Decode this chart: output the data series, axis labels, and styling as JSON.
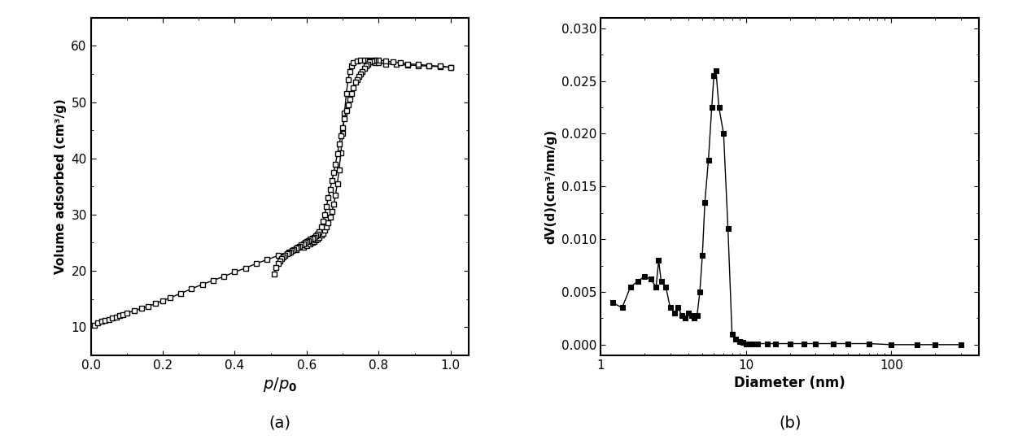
{
  "adsorption_x": [
    0.01,
    0.02,
    0.03,
    0.04,
    0.05,
    0.06,
    0.07,
    0.08,
    0.09,
    0.1,
    0.12,
    0.14,
    0.16,
    0.18,
    0.2,
    0.22,
    0.25,
    0.28,
    0.31,
    0.34,
    0.37,
    0.4,
    0.43,
    0.46,
    0.49,
    0.52,
    0.55,
    0.57,
    0.59,
    0.6,
    0.61,
    0.615,
    0.62,
    0.625,
    0.63,
    0.635,
    0.64,
    0.645,
    0.65,
    0.655,
    0.66,
    0.665,
    0.67,
    0.675,
    0.68,
    0.685,
    0.69,
    0.695,
    0.7,
    0.705,
    0.71,
    0.715,
    0.72,
    0.725,
    0.73,
    0.74,
    0.75,
    0.76,
    0.77,
    0.775,
    0.78,
    0.785,
    0.79,
    0.8,
    0.82,
    0.85,
    0.88,
    0.91,
    0.94,
    0.97,
    1.0
  ],
  "adsorption_y": [
    10.3,
    10.8,
    11.0,
    11.2,
    11.4,
    11.6,
    11.8,
    12.0,
    12.2,
    12.5,
    12.9,
    13.3,
    13.7,
    14.2,
    14.7,
    15.2,
    16.0,
    16.8,
    17.6,
    18.3,
    19.0,
    19.8,
    20.5,
    21.3,
    22.0,
    22.7,
    23.4,
    23.8,
    24.2,
    24.5,
    24.8,
    25.0,
    25.2,
    25.5,
    25.7,
    26.0,
    26.3,
    26.7,
    27.2,
    27.8,
    28.5,
    29.5,
    30.5,
    31.8,
    33.5,
    35.5,
    38.0,
    41.0,
    44.5,
    48.0,
    51.5,
    54.0,
    55.5,
    56.5,
    57.0,
    57.3,
    57.5,
    57.5,
    57.4,
    57.3,
    57.2,
    57.1,
    57.0,
    57.0,
    56.8,
    56.7,
    56.6,
    56.5,
    56.4,
    56.3,
    56.2
  ],
  "desorption_x": [
    1.0,
    0.97,
    0.94,
    0.91,
    0.88,
    0.86,
    0.84,
    0.82,
    0.8,
    0.79,
    0.785,
    0.78,
    0.775,
    0.77,
    0.765,
    0.76,
    0.755,
    0.75,
    0.745,
    0.74,
    0.735,
    0.73,
    0.725,
    0.72,
    0.715,
    0.71,
    0.705,
    0.7,
    0.695,
    0.69,
    0.685,
    0.68,
    0.675,
    0.67,
    0.665,
    0.66,
    0.655,
    0.65,
    0.645,
    0.64,
    0.635,
    0.63,
    0.625,
    0.62,
    0.615,
    0.61,
    0.605,
    0.6,
    0.595,
    0.59,
    0.585,
    0.58,
    0.575,
    0.57,
    0.565,
    0.56,
    0.555,
    0.55,
    0.545,
    0.54,
    0.535,
    0.53,
    0.525,
    0.52,
    0.515,
    0.51
  ],
  "desorption_y": [
    56.2,
    56.4,
    56.5,
    56.7,
    56.8,
    57.0,
    57.1,
    57.3,
    57.5,
    57.5,
    57.4,
    57.3,
    57.1,
    56.8,
    56.5,
    56.0,
    55.5,
    55.0,
    54.5,
    54.0,
    53.5,
    52.5,
    51.5,
    50.5,
    49.5,
    48.5,
    47.0,
    45.5,
    44.0,
    42.5,
    40.8,
    39.0,
    37.5,
    36.0,
    34.5,
    33.0,
    31.5,
    30.0,
    28.8,
    27.8,
    27.0,
    26.5,
    26.2,
    26.0,
    25.8,
    25.6,
    25.4,
    25.2,
    25.0,
    24.8,
    24.6,
    24.4,
    24.2,
    24.0,
    23.8,
    23.6,
    23.4,
    23.2,
    23.0,
    22.8,
    22.5,
    22.2,
    21.8,
    21.3,
    20.6,
    19.5
  ],
  "psd_x": [
    1.2,
    1.4,
    1.6,
    1.8,
    2.0,
    2.2,
    2.4,
    2.5,
    2.6,
    2.8,
    3.0,
    3.2,
    3.4,
    3.6,
    3.8,
    4.0,
    4.2,
    4.4,
    4.6,
    4.8,
    5.0,
    5.2,
    5.5,
    5.8,
    6.0,
    6.2,
    6.5,
    7.0,
    7.5,
    8.0,
    8.5,
    9.0,
    9.5,
    10.0,
    11.0,
    12.0,
    14.0,
    16.0,
    20.0,
    25.0,
    30.0,
    40.0,
    50.0,
    70.0,
    100.0,
    150.0,
    200.0,
    300.0
  ],
  "psd_y": [
    0.004,
    0.0035,
    0.0055,
    0.006,
    0.0065,
    0.0062,
    0.0055,
    0.008,
    0.006,
    0.0055,
    0.0035,
    0.003,
    0.0035,
    0.0028,
    0.0025,
    0.003,
    0.0028,
    0.0025,
    0.0028,
    0.005,
    0.0085,
    0.0135,
    0.0175,
    0.0225,
    0.0255,
    0.026,
    0.0225,
    0.02,
    0.011,
    0.001,
    0.0005,
    0.0003,
    0.0002,
    0.0001,
    0.0001,
    0.0001,
    0.0001,
    0.0001,
    0.0001,
    0.0001,
    0.0001,
    0.0001,
    0.0001,
    0.0001,
    0.0,
    0.0,
    0.0,
    0.0
  ],
  "ylabel_a": "Volume adsorbed (cm³/g)",
  "xlabel_a": "$\\it{p/p}$$_\\mathbf{0}$",
  "ylabel_b": "dV(d)(cm³/nm/g)",
  "xlabel_b": "Diameter (nm)",
  "label_a": "(a)",
  "label_b": "(b)",
  "ylim_a": [
    5,
    65
  ],
  "xlim_a": [
    0.0,
    1.05
  ],
  "yticks_a": [
    10,
    20,
    30,
    40,
    50,
    60
  ],
  "xticks_a": [
    0.0,
    0.2,
    0.4,
    0.6,
    0.8,
    1.0
  ],
  "ylim_b": [
    -0.001,
    0.031
  ],
  "yticks_b": [
    0.0,
    0.005,
    0.01,
    0.015,
    0.02,
    0.025,
    0.03
  ],
  "xlim_b_log": [
    1,
    400
  ]
}
